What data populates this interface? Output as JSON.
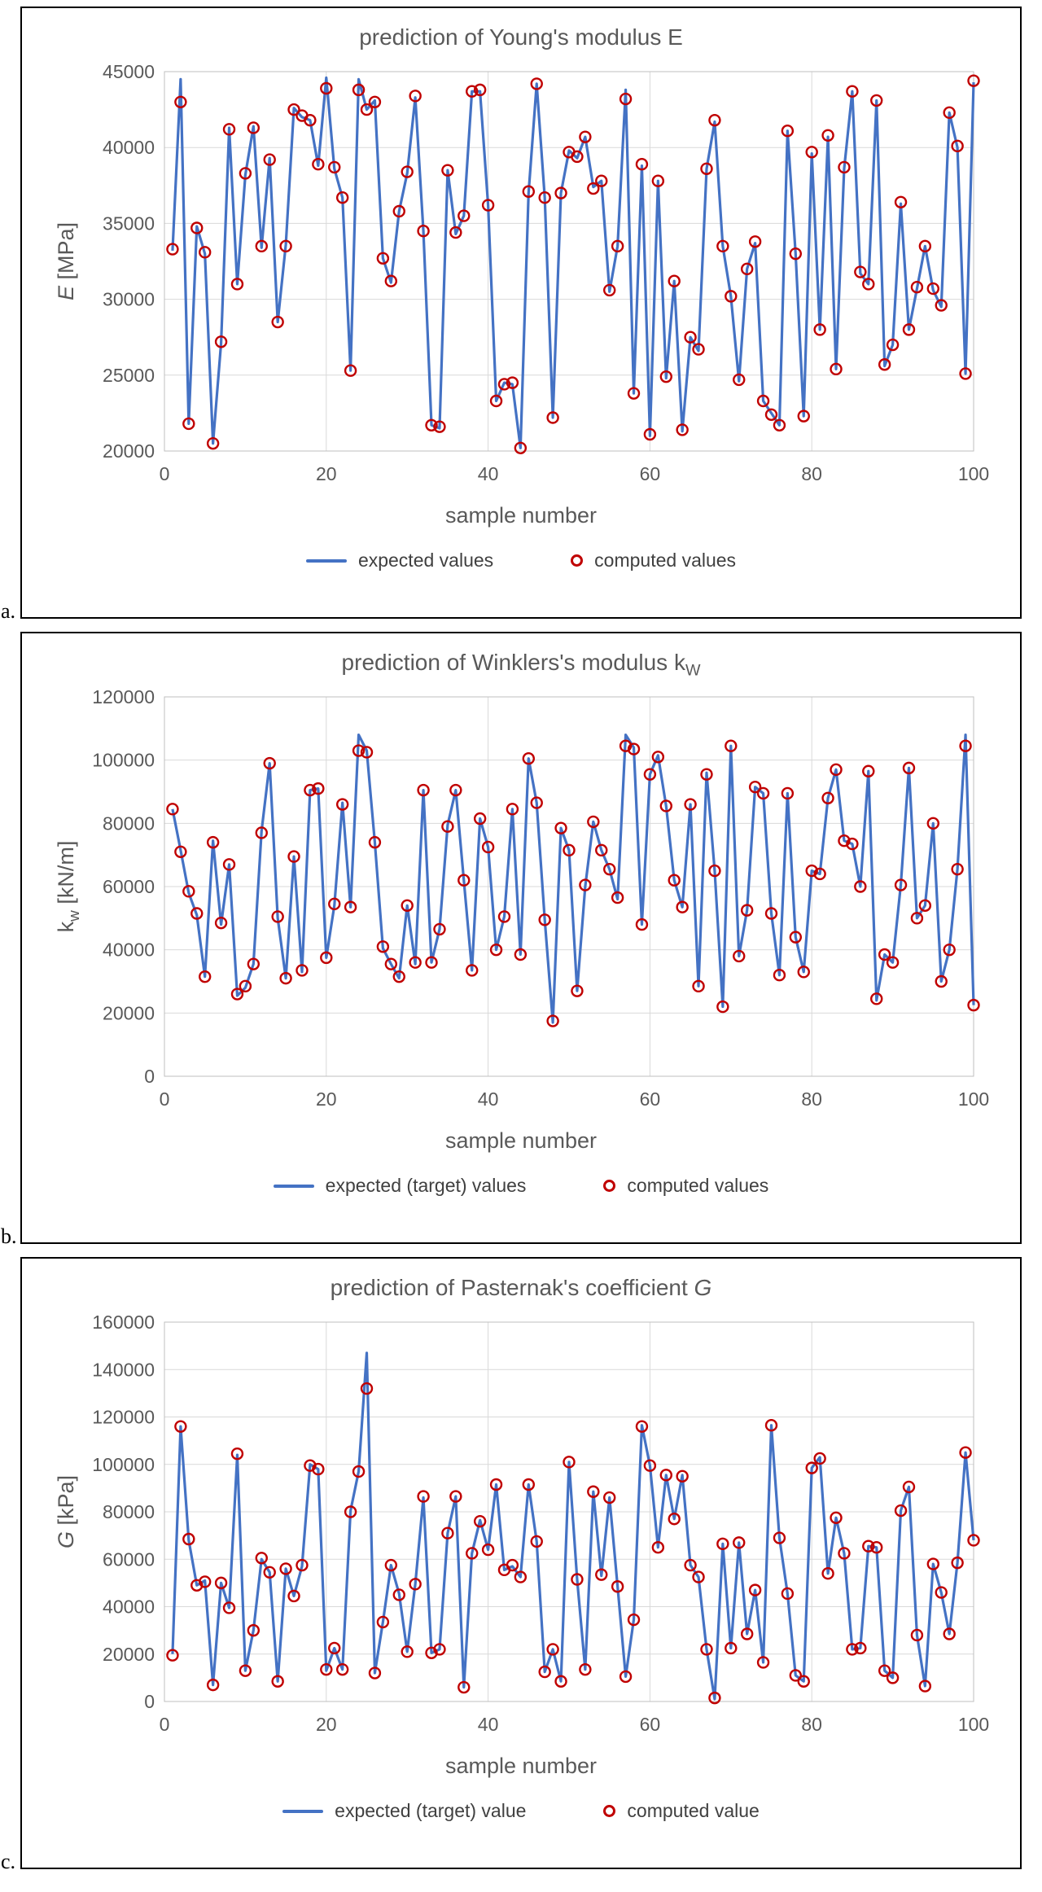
{
  "figure_labels": [
    "a.",
    "b.",
    "c."
  ],
  "chart_data": [
    {
      "type": "line",
      "title": "prediction of Young's modulus E",
      "title_parts": [
        {
          "t": "prediction of Young's modulus E"
        }
      ],
      "xlabel": "sample number",
      "ylabel": "E [MPa]",
      "ylabel_parts": [
        {
          "t": "E",
          "italic": true
        },
        {
          "t": " [MPa]"
        }
      ],
      "xlim": [
        0,
        100
      ],
      "ylim": [
        20000,
        45000
      ],
      "xticks": [
        0,
        20,
        40,
        60,
        80,
        100
      ],
      "yticks": [
        20000,
        25000,
        30000,
        35000,
        40000,
        45000
      ],
      "grid": true,
      "legend_position": "bottom",
      "x_start": 1,
      "legend": [
        {
          "label": "expected values",
          "marker": "line",
          "color": "#4472C4"
        },
        {
          "label": "computed values",
          "marker": "circle",
          "color": "#C00000"
        }
      ],
      "series": [
        {
          "name": "expected values",
          "kind": "line",
          "color": "#4472C4",
          "values": [
            33200,
            44500,
            21800,
            34800,
            33000,
            20500,
            27100,
            41300,
            31000,
            38200,
            41400,
            33400,
            39300,
            28500,
            33600,
            42600,
            42000,
            41800,
            38800,
            44600,
            38600,
            36700,
            25300,
            44500,
            42500,
            43100,
            32700,
            31100,
            35800,
            38300,
            43300,
            34500,
            21700,
            21500,
            38500,
            34300,
            35500,
            43700,
            43700,
            36200,
            23300,
            24500,
            24400,
            20200,
            37000,
            44200,
            36700,
            22200,
            37000,
            39800,
            39300,
            40700,
            37400,
            37800,
            30500,
            33500,
            43800,
            23800,
            38800,
            21000,
            37800,
            24800,
            31200,
            21300,
            27500,
            26600,
            38600,
            41700,
            33500,
            30200,
            24600,
            32000,
            33700,
            23300,
            22500,
            21700,
            41100,
            33000,
            22300,
            39600,
            28000,
            40700,
            25400,
            38600,
            43700,
            31700,
            31000,
            43100,
            25600,
            27000,
            36300,
            28000,
            30700,
            33500,
            30600,
            29500,
            42300,
            40000,
            25100,
            44300
          ]
        },
        {
          "name": "computed values",
          "kind": "scatter",
          "color": "#C00000",
          "values": [
            33300,
            43000,
            21800,
            34700,
            33100,
            20500,
            27200,
            41200,
            31000,
            38300,
            41300,
            33500,
            39200,
            28500,
            33500,
            42500,
            42100,
            41800,
            38900,
            43900,
            38700,
            36700,
            25300,
            43800,
            42500,
            43000,
            32700,
            31200,
            35800,
            38400,
            43400,
            34500,
            21700,
            21600,
            38500,
            34400,
            35500,
            43700,
            43800,
            36200,
            23300,
            24400,
            24500,
            20200,
            37100,
            44200,
            36700,
            22200,
            37000,
            39700,
            39400,
            40700,
            37300,
            37800,
            30600,
            33500,
            43200,
            23800,
            38900,
            21100,
            37800,
            24900,
            31200,
            21400,
            27500,
            26700,
            38600,
            41800,
            33500,
            30200,
            24700,
            32000,
            33800,
            23300,
            22400,
            21700,
            41100,
            33000,
            22300,
            39700,
            28000,
            40800,
            25400,
            38700,
            43700,
            31800,
            31000,
            43100,
            25700,
            27000,
            36400,
            28000,
            30800,
            33500,
            30700,
            29600,
            42300,
            40100,
            25100,
            44400
          ]
        }
      ]
    },
    {
      "type": "line",
      "title": "prediction of Winklers's modulus kW",
      "title_parts": [
        {
          "t": "prediction of Winklers's modulus k"
        },
        {
          "t": "W",
          "sub": true
        }
      ],
      "xlabel": "sample number",
      "ylabel": "kw [kN/m]",
      "ylabel_parts": [
        {
          "t": "k"
        },
        {
          "t": "w",
          "sub": true
        },
        {
          "t": " [kN/m]"
        }
      ],
      "xlim": [
        0,
        100
      ],
      "ylim": [
        0,
        120000
      ],
      "xticks": [
        0,
        20,
        40,
        60,
        80,
        100
      ],
      "yticks": [
        0,
        20000,
        40000,
        60000,
        80000,
        100000,
        120000
      ],
      "grid": true,
      "legend_position": "bottom",
      "x_start": 1,
      "legend": [
        {
          "label": "expected (target) values",
          "marker": "line",
          "color": "#4472C4"
        },
        {
          "label": "computed values",
          "marker": "circle",
          "color": "#C00000"
        }
      ],
      "series": [
        {
          "name": "expected (target) values",
          "kind": "line",
          "color": "#4472C4",
          "values": [
            84500,
            71500,
            58000,
            51000,
            31500,
            74500,
            48000,
            67000,
            25500,
            28000,
            35500,
            77500,
            99000,
            50000,
            31000,
            69500,
            33000,
            90500,
            91000,
            37500,
            54000,
            86500,
            53500,
            108000,
            103000,
            74000,
            40500,
            35500,
            31000,
            54000,
            35500,
            90500,
            36000,
            46500,
            79500,
            90500,
            62000,
            33500,
            81500,
            72500,
            40000,
            50500,
            84500,
            38500,
            100500,
            86500,
            49500,
            17000,
            78500,
            71500,
            27000,
            60000,
            80500,
            71500,
            65500,
            56000,
            108000,
            104000,
            48000,
            95500,
            101500,
            85500,
            62000,
            53500,
            86000,
            28500,
            96000,
            65000,
            22000,
            104500,
            38000,
            52500,
            91500,
            89500,
            51500,
            32000,
            89500,
            44000,
            33000,
            65000,
            64000,
            88000,
            97000,
            74500,
            73500,
            60000,
            96500,
            24000,
            38500,
            36000,
            60500,
            97500,
            50000,
            54000,
            80000,
            30000,
            40000,
            65500,
            108000,
            22500
          ]
        },
        {
          "name": "computed values",
          "kind": "scatter",
          "color": "#C00000",
          "values": [
            84500,
            71000,
            58500,
            51500,
            31500,
            74000,
            48500,
            67000,
            26000,
            28500,
            35500,
            77000,
            99000,
            50500,
            31000,
            69500,
            33500,
            90500,
            91000,
            37500,
            54500,
            86000,
            53500,
            103000,
            102500,
            74000,
            41000,
            35500,
            31500,
            54000,
            36000,
            90500,
            36000,
            46500,
            79000,
            90500,
            62000,
            33500,
            81500,
            72500,
            40000,
            50500,
            84500,
            38500,
            100500,
            86500,
            49500,
            17500,
            78500,
            71500,
            27000,
            60500,
            80500,
            71500,
            65500,
            56500,
            104500,
            103500,
            48000,
            95500,
            101000,
            85500,
            62000,
            53500,
            86000,
            28500,
            95500,
            65000,
            22000,
            104500,
            38000,
            52500,
            91500,
            89500,
            51500,
            32000,
            89500,
            44000,
            33000,
            65000,
            64000,
            88000,
            97000,
            74500,
            73500,
            60000,
            96500,
            24500,
            38500,
            36000,
            60500,
            97500,
            50000,
            54000,
            80000,
            30000,
            40000,
            65500,
            104500,
            22500
          ]
        }
      ]
    },
    {
      "type": "line",
      "title": "prediction of Pasternak's coefficient G",
      "title_parts": [
        {
          "t": "prediction of Pasternak's coefficient "
        },
        {
          "t": "G",
          "italic": true
        }
      ],
      "xlabel": "sample number",
      "ylabel": "G [kPa]",
      "ylabel_parts": [
        {
          "t": "G",
          "italic": true
        },
        {
          "t": " [kPa]"
        }
      ],
      "xlim": [
        0,
        100
      ],
      "ylim": [
        0,
        160000
      ],
      "xticks": [
        0,
        20,
        40,
        60,
        80,
        100
      ],
      "yticks": [
        0,
        20000,
        40000,
        60000,
        80000,
        100000,
        120000,
        140000,
        160000
      ],
      "grid": true,
      "legend_position": "bottom",
      "x_start": 1,
      "legend": [
        {
          "label": "expected (target) value",
          "marker": "line",
          "color": "#4472C4"
        },
        {
          "label": "computed value",
          "marker": "circle",
          "color": "#C00000"
        }
      ],
      "series": [
        {
          "name": "expected (target) value",
          "kind": "line",
          "color": "#4472C4",
          "values": [
            20000,
            116000,
            68000,
            49000,
            51000,
            7000,
            50000,
            39500,
            104000,
            13000,
            30000,
            60000,
            54500,
            8500,
            56000,
            44500,
            57000,
            100000,
            98000,
            13000,
            22500,
            13500,
            80500,
            97000,
            147000,
            12000,
            33500,
            57500,
            45500,
            21000,
            49500,
            86000,
            20500,
            22000,
            71000,
            86500,
            6000,
            62500,
            76500,
            64000,
            91500,
            55500,
            57000,
            52500,
            91500,
            67500,
            12500,
            22000,
            8500,
            101000,
            51500,
            13500,
            88500,
            53000,
            86000,
            48500,
            10500,
            34500,
            116500,
            99500,
            65000,
            95500,
            77000,
            95500,
            57500,
            52500,
            22000,
            1000,
            66500,
            22500,
            67000,
            28500,
            47000,
            16500,
            116500,
            69000,
            45500,
            11000,
            8500,
            98500,
            103000,
            54000,
            77500,
            62500,
            22000,
            22500,
            65500,
            65000,
            13000,
            10000,
            80500,
            90500,
            28000,
            6500,
            58000,
            46000,
            28500,
            58500,
            105000,
            68000
          ]
        },
        {
          "name": "computed value",
          "kind": "scatter",
          "color": "#C00000",
          "values": [
            19500,
            116000,
            68500,
            49000,
            50500,
            7000,
            50000,
            39500,
            104500,
            13000,
            30000,
            60500,
            54500,
            8500,
            56000,
            44500,
            57500,
            99500,
            98000,
            13500,
            22500,
            13500,
            80000,
            97000,
            132000,
            12000,
            33500,
            57500,
            45000,
            21000,
            49500,
            86500,
            20500,
            22000,
            71000,
            86500,
            6000,
            62500,
            76000,
            64000,
            91500,
            55500,
            57500,
            52500,
            91500,
            67500,
            12500,
            22000,
            8500,
            101000,
            51500,
            13500,
            88500,
            53500,
            86000,
            48500,
            10500,
            34500,
            116000,
            99500,
            65000,
            95500,
            77000,
            95000,
            57500,
            52500,
            22000,
            1500,
            66500,
            22500,
            67000,
            28500,
            47000,
            16500,
            116500,
            69000,
            45500,
            11000,
            8500,
            98500,
            102500,
            54000,
            77500,
            62500,
            22000,
            22500,
            65500,
            65000,
            13000,
            10000,
            80500,
            90500,
            28000,
            6500,
            58000,
            46000,
            28500,
            58500,
            105000,
            68000
          ]
        }
      ]
    }
  ]
}
